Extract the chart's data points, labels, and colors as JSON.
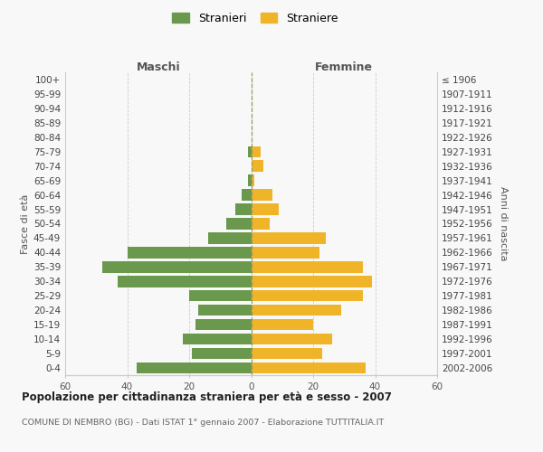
{
  "age_groups": [
    "100+",
    "95-99",
    "90-94",
    "85-89",
    "80-84",
    "75-79",
    "70-74",
    "65-69",
    "60-64",
    "55-59",
    "50-54",
    "45-49",
    "40-44",
    "35-39",
    "30-34",
    "25-29",
    "20-24",
    "15-19",
    "10-14",
    "5-9",
    "0-4"
  ],
  "birth_years": [
    "≤ 1906",
    "1907-1911",
    "1912-1916",
    "1917-1921",
    "1922-1926",
    "1927-1931",
    "1932-1936",
    "1937-1941",
    "1942-1946",
    "1947-1951",
    "1952-1956",
    "1957-1961",
    "1962-1966",
    "1967-1971",
    "1972-1976",
    "1977-1981",
    "1982-1986",
    "1987-1991",
    "1992-1996",
    "1997-2001",
    "2002-2006"
  ],
  "males": [
    0,
    0,
    0,
    0,
    0,
    1,
    0,
    1,
    3,
    5,
    8,
    14,
    40,
    48,
    43,
    20,
    17,
    18,
    22,
    19,
    37
  ],
  "females": [
    0,
    0,
    0,
    0,
    0,
    3,
    4,
    1,
    7,
    9,
    6,
    24,
    22,
    36,
    39,
    36,
    29,
    20,
    26,
    23,
    37
  ],
  "male_color": "#6a994e",
  "female_color": "#f0b429",
  "bg_color": "#f8f8f8",
  "grid_color": "#cccccc",
  "centerline_color": "#999966",
  "title": "Popolazione per cittadinanza straniera per età e sesso - 2007",
  "subtitle": "COMUNE DI NEMBRO (BG) - Dati ISTAT 1° gennaio 2007 - Elaborazione TUTTITALIA.IT",
  "label_maschi": "Maschi",
  "label_femmine": "Femmine",
  "label_fasce": "Fasce di età",
  "label_anni": "Anni di nascita",
  "legend_m": "Stranieri",
  "legend_f": "Straniere",
  "xlim": 60
}
